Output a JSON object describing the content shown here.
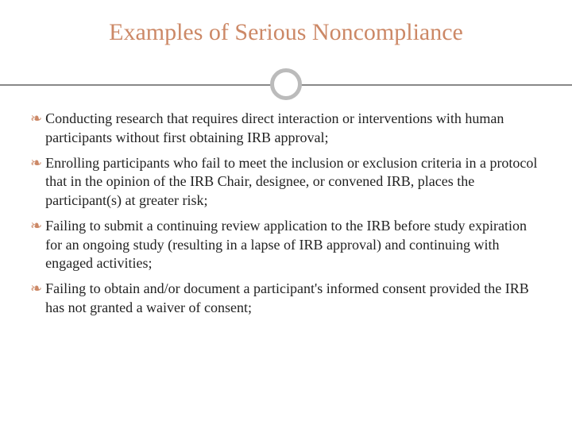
{
  "slide": {
    "title": "Examples of Serious Noncompliance",
    "title_color": "#cc8866",
    "title_fontsize": 30,
    "background_color": "#ffffff",
    "divider": {
      "line_color": "#888888",
      "circle_border_color": "#bbbbbb",
      "circle_diameter": 40,
      "circle_border_width": 5
    },
    "bullet_glyph": "❧",
    "bullet_color": "#cc8866",
    "body_color": "#222222",
    "body_fontsize": 18,
    "items": [
      "Conducting research that requires direct interaction or interventions with human participants without first obtaining IRB approval;",
      "Enrolling participants who fail to meet the inclusion or exclusion criteria in a protocol that in the opinion of the IRB Chair, designee, or convened IRB, places the participant(s) at greater risk;",
      "Failing to submit a continuing review application to the IRB before study expiration for an ongoing study (resulting in a lapse of IRB approval) and continuing with engaged activities;",
      "Failing to obtain and/or document a participant's informed consent provided the IRB has not granted a waiver of consent;"
    ]
  }
}
